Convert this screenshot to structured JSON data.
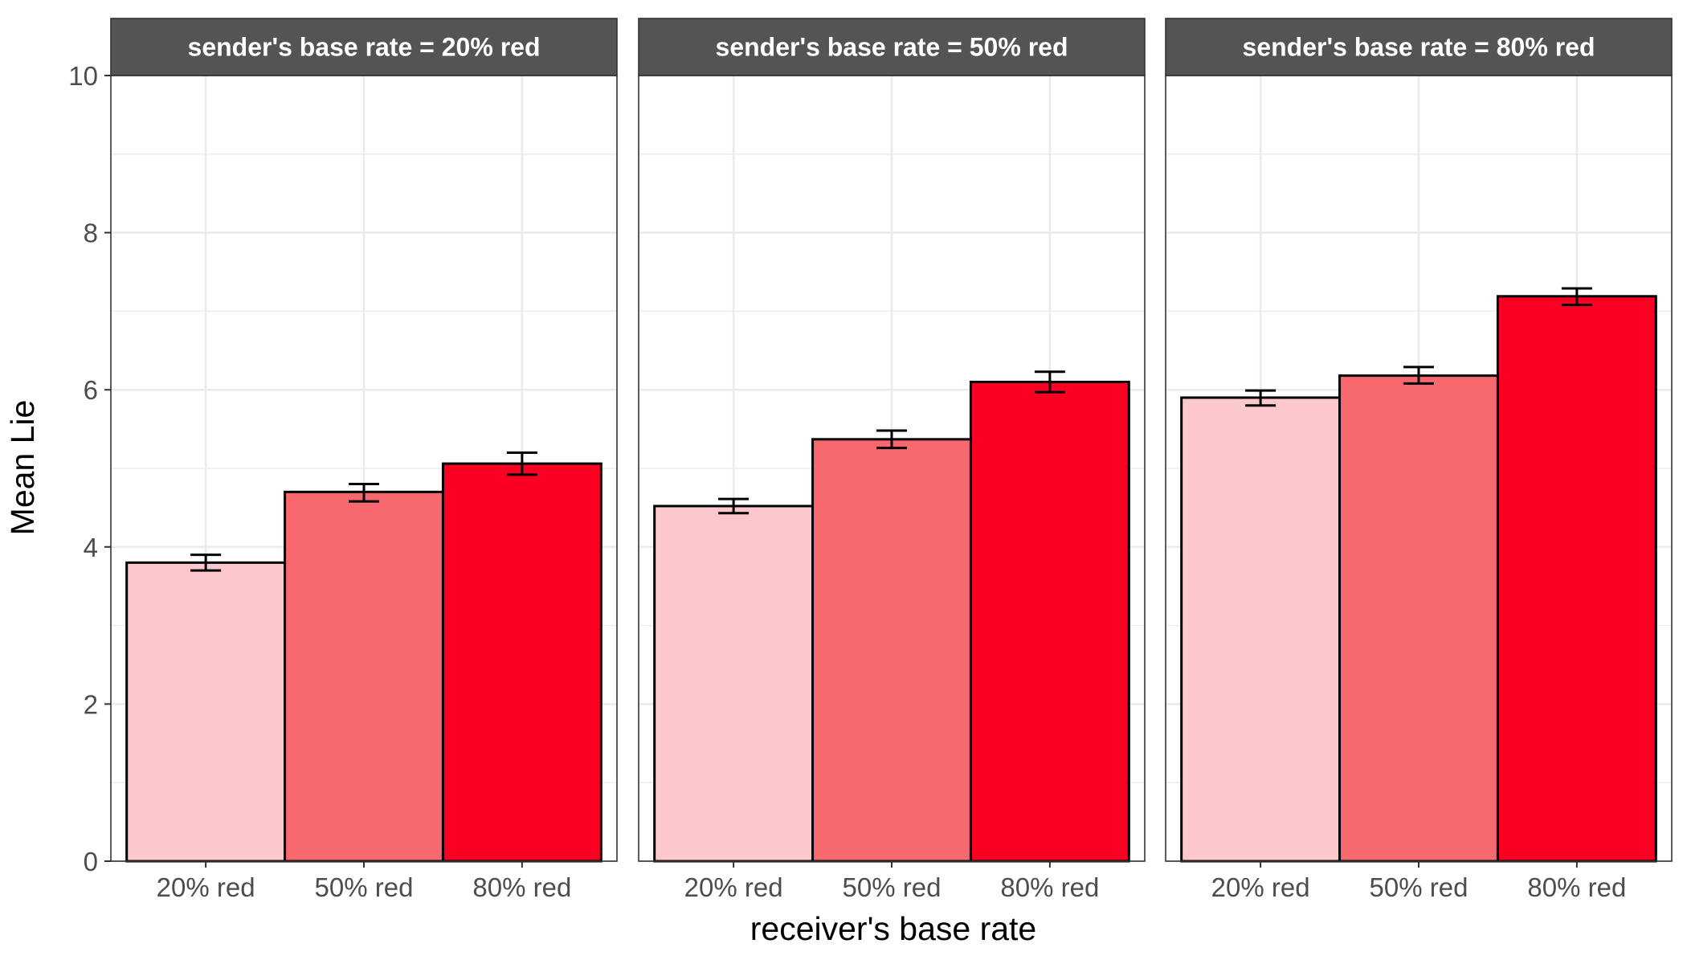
{
  "chart_data": {
    "type": "bar",
    "facet_label_prefix": "sender's base rate = ",
    "facets": [
      {
        "label": "sender's base rate = 20% red",
        "categories": [
          "20% red",
          "50% red",
          "80% red"
        ],
        "values": [
          3.8,
          4.7,
          5.06
        ],
        "error_low": [
          3.7,
          4.58,
          4.92
        ],
        "error_high": [
          3.9,
          4.8,
          5.2
        ]
      },
      {
        "label": "sender's base rate = 50% red",
        "categories": [
          "20% red",
          "50% red",
          "80% red"
        ],
        "values": [
          4.52,
          5.37,
          6.1
        ],
        "error_low": [
          4.43,
          5.26,
          5.97
        ],
        "error_high": [
          4.61,
          5.48,
          6.23
        ]
      },
      {
        "label": "sender's base rate = 80% red",
        "categories": [
          "20% red",
          "50% red",
          "80% red"
        ],
        "values": [
          5.9,
          6.18,
          7.19
        ],
        "error_low": [
          5.8,
          6.08,
          7.08
        ],
        "error_high": [
          5.99,
          6.29,
          7.29
        ]
      }
    ],
    "fill_colors": [
      "#fdc8cb",
      "#f7686f",
      "#fb0022"
    ],
    "xlabel": "receiver's base rate",
    "ylabel": "Mean Lie",
    "ylim": [
      0,
      10
    ],
    "yticks": [
      0,
      2,
      4,
      6,
      8,
      10
    ],
    "grid": true
  }
}
